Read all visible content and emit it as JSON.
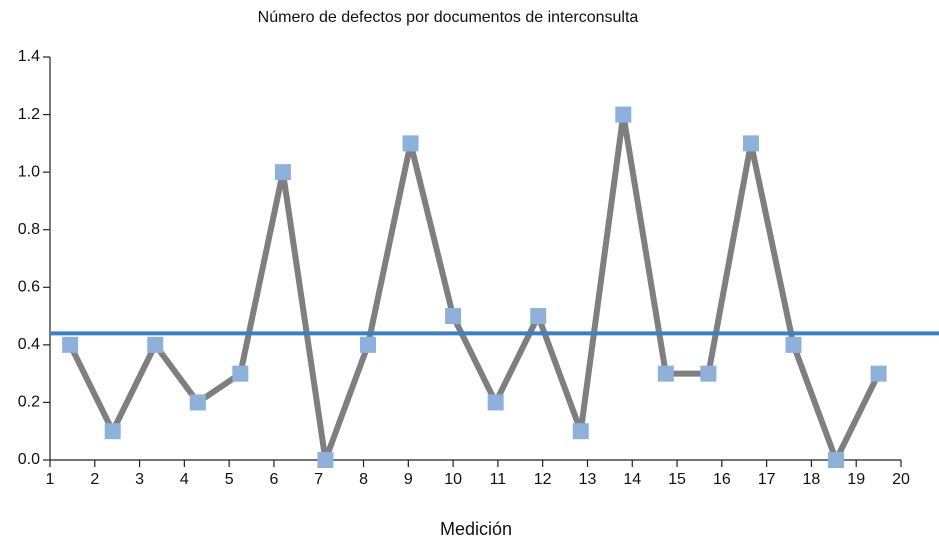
{
  "chart_data": {
    "type": "line",
    "title": "Número de defectos por documentos de interconsulta",
    "x_label": "Medición",
    "x": [
      1.45,
      2.4,
      3.35,
      4.3,
      5.25,
      6.2,
      7.15,
      8.1,
      9.05,
      10.0,
      10.95,
      11.9,
      12.85,
      13.8,
      14.75,
      15.7,
      16.65,
      17.6,
      18.55,
      19.5
    ],
    "series": [
      {
        "color": "#7f7f7f",
        "marker_color": "#8eb1dc",
        "values": [
          0.4,
          0.1,
          0.4,
          0.2,
          0.3,
          1.0,
          0.0,
          0.4,
          1.1,
          0.5,
          0.2,
          0.5,
          0.1,
          1.2,
          0.3,
          0.3,
          1.1,
          0.4,
          0.0,
          0.3
        ]
      }
    ],
    "reference_line": {
      "value": 0.44,
      "color": "#3a80c4"
    },
    "xlim": [
      1,
      20
    ],
    "xticks": [
      1,
      2,
      3,
      4,
      5,
      6,
      7,
      8,
      9,
      10,
      11,
      12,
      13,
      14,
      15,
      16,
      17,
      18,
      19,
      20
    ],
    "ylim": [
      0,
      1.4
    ],
    "yticks": [
      {
        "value": 0,
        "label": "0.0"
      },
      0.2,
      0.4,
      0.6,
      0.8,
      {
        "value": 1,
        "label": "1.0"
      },
      1.2,
      1.4
    ]
  }
}
